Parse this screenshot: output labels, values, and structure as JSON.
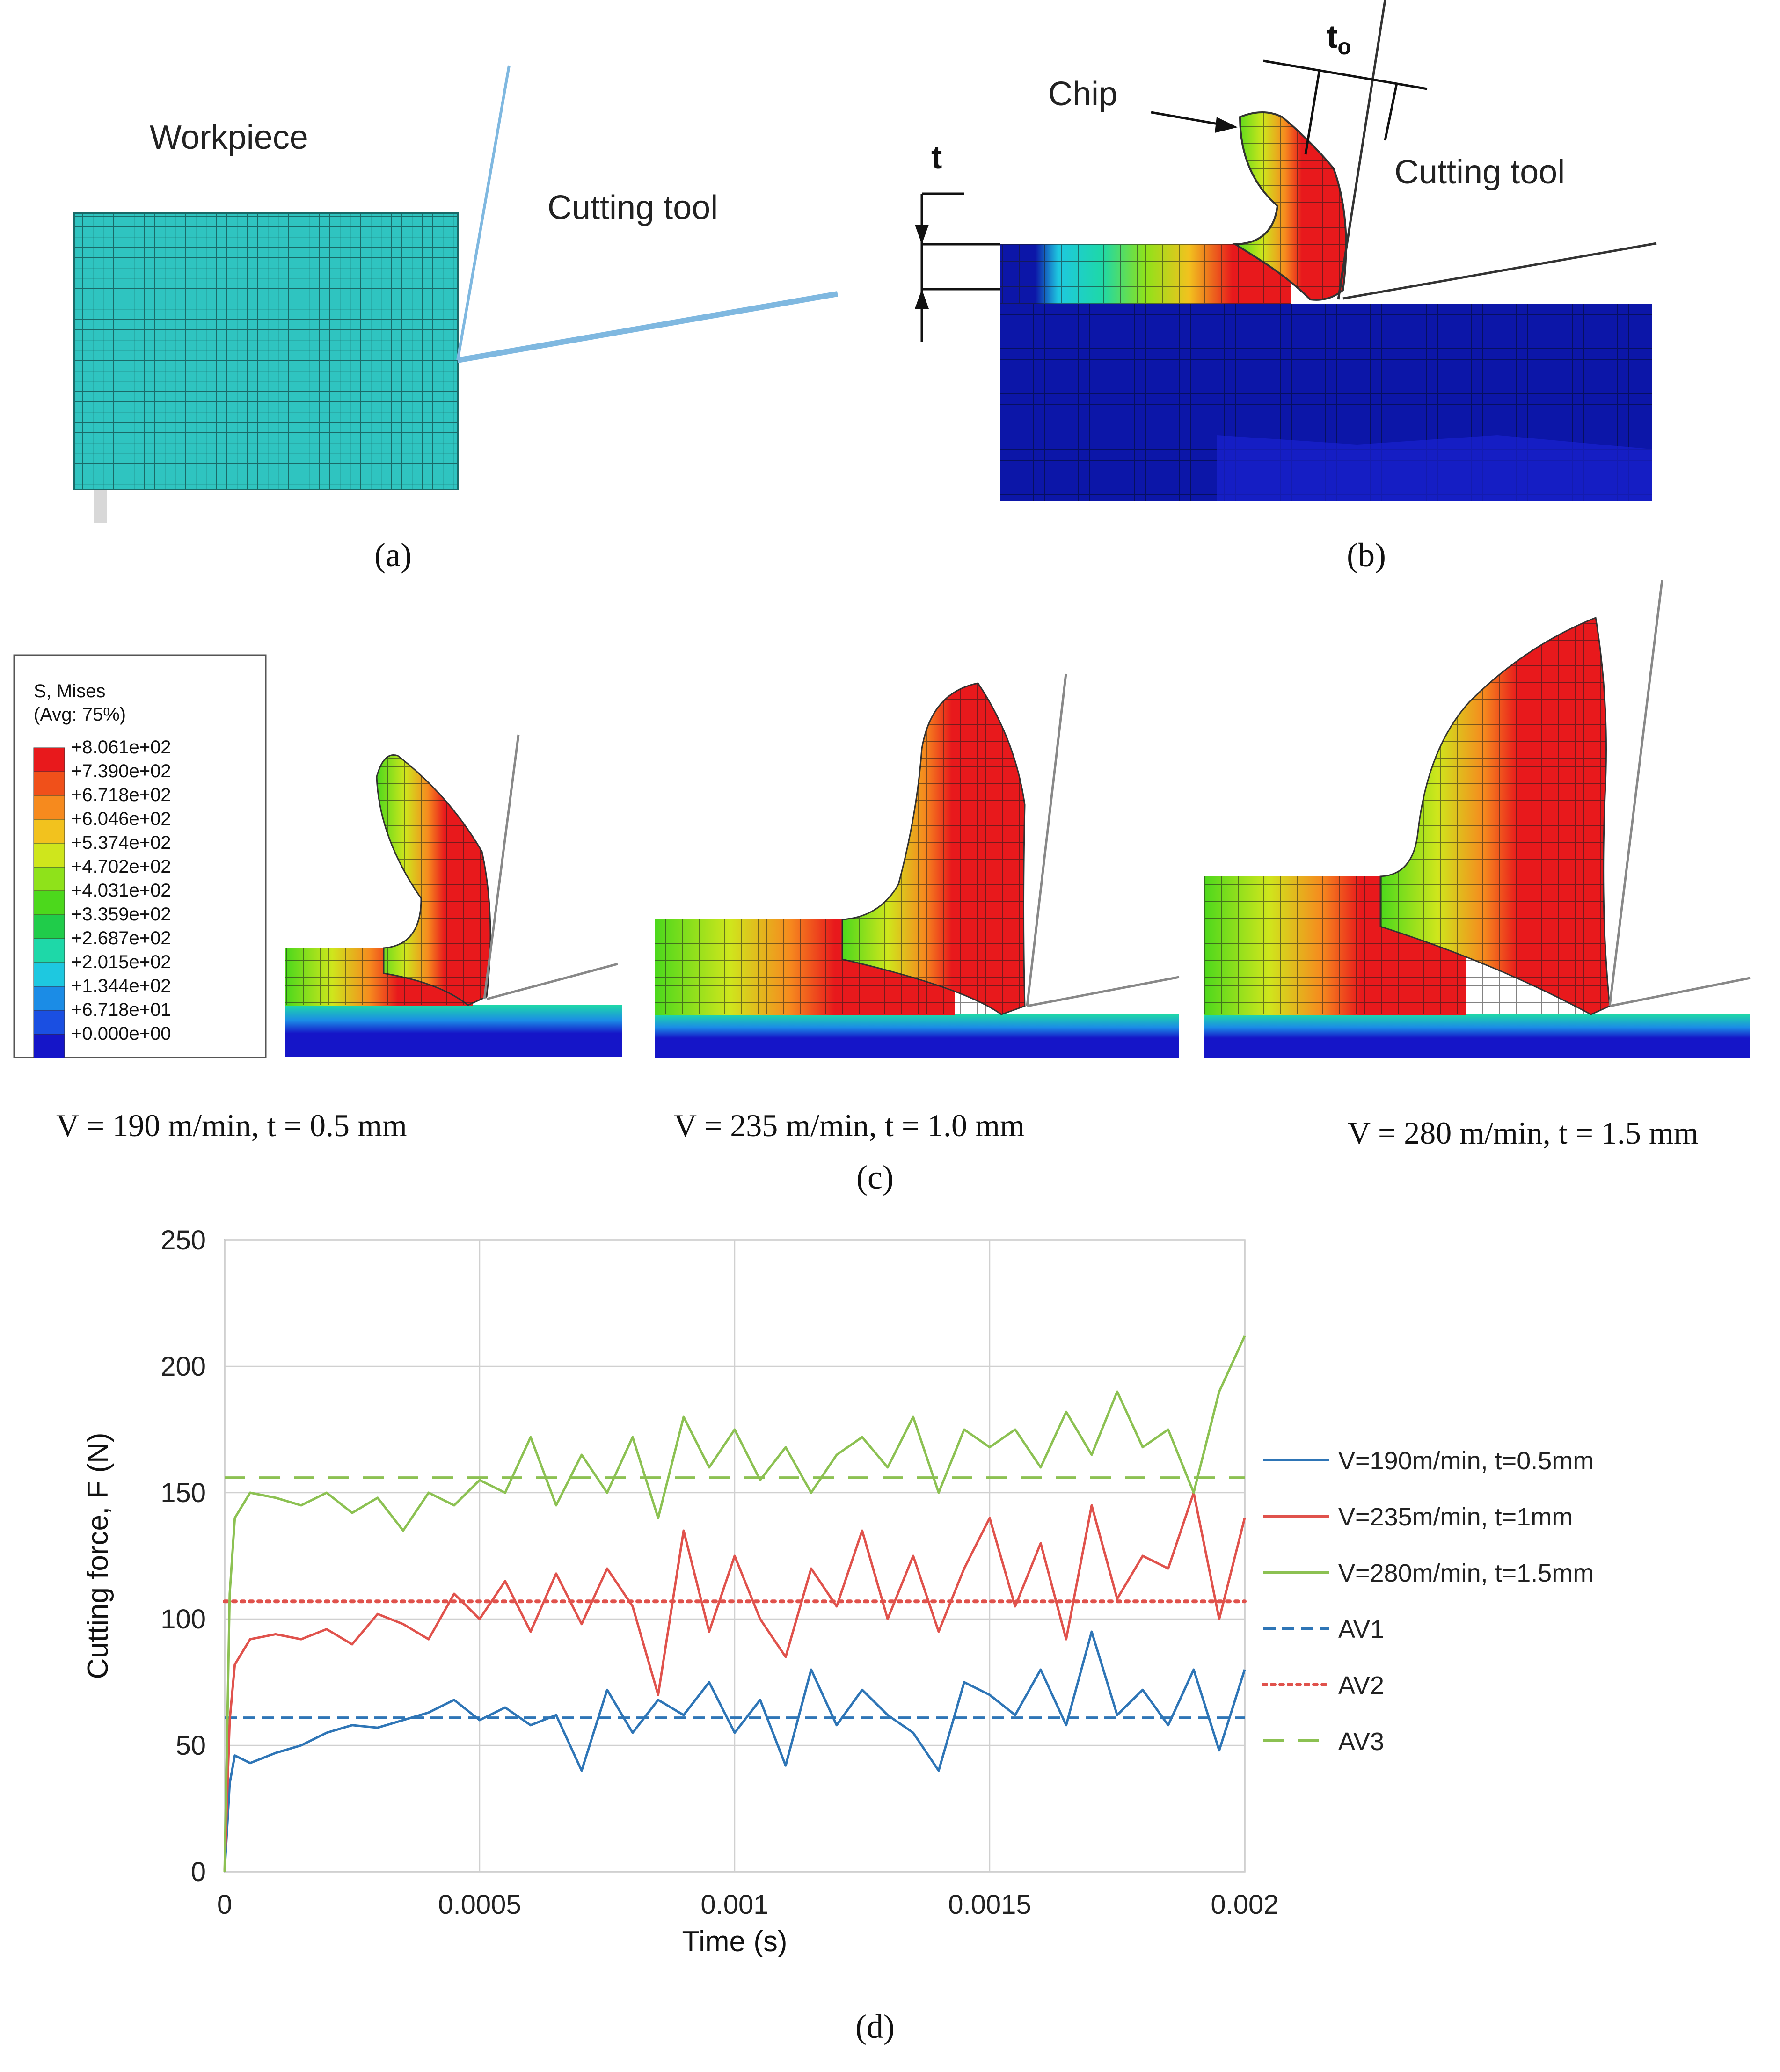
{
  "panels": {
    "a": {
      "caption": "(a)",
      "label_workpiece": "Workpiece",
      "label_tool": "Cutting tool"
    },
    "b": {
      "caption": "(b)",
      "label_chip": "Chip",
      "label_tool": "Cutting tool",
      "label_t": "t",
      "label_to_main": "t",
      "label_to_sub": "o"
    },
    "c": {
      "caption": "(c)",
      "legend_title_1": "S, Mises",
      "legend_title_2": "(Avg: 75%)",
      "legend_values": [
        "+8.061e+02",
        "+7.390e+02",
        "+6.718e+02",
        "+6.046e+02",
        "+5.374e+02",
        "+4.702e+02",
        "+4.031e+02",
        "+3.359e+02",
        "+2.687e+02",
        "+2.015e+02",
        "+1.344e+02",
        "+6.718e+01",
        "+0.000e+00"
      ],
      "legend_colors": [
        "#e8191c",
        "#f0501a",
        "#f68a1e",
        "#f2c21e",
        "#cfe61c",
        "#8fe21a",
        "#4cd81c",
        "#20cc4a",
        "#1ed8a8",
        "#1ec8e0",
        "#1b8ce6",
        "#1a4fe2",
        "#1515c8"
      ],
      "condition_labels": [
        "V = 190 m/min, t = 0.5 mm",
        "V = 235 m/min, t = 1.0 mm",
        "V = 280 m/min, t = 1.5 mm"
      ]
    },
    "d": {
      "caption": "(d)"
    }
  },
  "colors": {
    "mesh_cyan": "#2fc4c0",
    "deep_blue": "#0c16a8",
    "series_blue": "#2e75b6",
    "series_red": "#e0524c",
    "series_green": "#8cc152"
  },
  "chart_data": {
    "type": "line",
    "xlabel": "Time  (s)",
    "ylabel": "Cutting force, F (N)",
    "xlim": [
      0,
      0.002
    ],
    "ylim": [
      0,
      250
    ],
    "x_ticks": [
      0,
      0.0005,
      0.001,
      0.0015,
      0.002
    ],
    "x_tick_labels": [
      "0",
      "0.0005",
      "0.001",
      "0.0015",
      "0.002"
    ],
    "y_ticks": [
      0,
      50,
      100,
      150,
      200,
      250
    ],
    "y_tick_labels": [
      "0",
      "50",
      "100",
      "150",
      "200",
      "250"
    ],
    "grid": true,
    "legend_position": "right",
    "series": [
      {
        "name": "V=190m/min, t=0.5mm",
        "style": "solid",
        "color": "#2e75b6",
        "x": [
          0,
          1e-05,
          2e-05,
          5e-05,
          0.0001,
          0.00015,
          0.0002,
          0.00025,
          0.0003,
          0.00035,
          0.0004,
          0.00045,
          0.0005,
          0.00055,
          0.0006,
          0.00065,
          0.0007,
          0.00075,
          0.0008,
          0.00085,
          0.0009,
          0.00095,
          0.001,
          0.00105,
          0.0011,
          0.00115,
          0.0012,
          0.00125,
          0.0013,
          0.00135,
          0.0014,
          0.00145,
          0.0015,
          0.00155,
          0.0016,
          0.00165,
          0.0017,
          0.00175,
          0.0018,
          0.00185,
          0.0019,
          0.00195,
          0.002
        ],
        "values": [
          0,
          35,
          46,
          43,
          47,
          50,
          55,
          58,
          57,
          60,
          63,
          68,
          60,
          65,
          58,
          62,
          40,
          72,
          55,
          68,
          62,
          75,
          55,
          68,
          42,
          80,
          58,
          72,
          62,
          55,
          40,
          75,
          70,
          62,
          80,
          58,
          95,
          62,
          72,
          58,
          80,
          48,
          80
        ]
      },
      {
        "name": "V=235m/min, t=1mm",
        "style": "solid",
        "color": "#e0524c",
        "x": [
          0,
          1e-05,
          2e-05,
          5e-05,
          0.0001,
          0.00015,
          0.0002,
          0.00025,
          0.0003,
          0.00035,
          0.0004,
          0.00045,
          0.0005,
          0.00055,
          0.0006,
          0.00065,
          0.0007,
          0.00075,
          0.0008,
          0.00085,
          0.0009,
          0.00095,
          0.001,
          0.00105,
          0.0011,
          0.00115,
          0.0012,
          0.00125,
          0.0013,
          0.00135,
          0.0014,
          0.00145,
          0.0015,
          0.00155,
          0.0016,
          0.00165,
          0.0017,
          0.00175,
          0.0018,
          0.00185,
          0.0019,
          0.00195,
          0.002
        ],
        "values": [
          0,
          60,
          82,
          92,
          94,
          92,
          96,
          90,
          102,
          98,
          92,
          110,
          100,
          115,
          95,
          118,
          98,
          120,
          105,
          70,
          135,
          95,
          125,
          100,
          85,
          120,
          105,
          135,
          100,
          125,
          95,
          120,
          140,
          105,
          130,
          92,
          145,
          108,
          125,
          120,
          150,
          100,
          140
        ]
      },
      {
        "name": "V=280m/min, t=1.5mm",
        "style": "solid",
        "color": "#8cc152",
        "x": [
          0,
          1e-05,
          2e-05,
          5e-05,
          0.0001,
          0.00015,
          0.0002,
          0.00025,
          0.0003,
          0.00035,
          0.0004,
          0.00045,
          0.0005,
          0.00055,
          0.0006,
          0.00065,
          0.0007,
          0.00075,
          0.0008,
          0.00085,
          0.0009,
          0.00095,
          0.001,
          0.00105,
          0.0011,
          0.00115,
          0.0012,
          0.00125,
          0.0013,
          0.00135,
          0.0014,
          0.00145,
          0.0015,
          0.00155,
          0.0016,
          0.00165,
          0.0017,
          0.00175,
          0.0018,
          0.00185,
          0.0019,
          0.00195,
          0.002
        ],
        "values": [
          0,
          110,
          140,
          150,
          148,
          145,
          150,
          142,
          148,
          135,
          150,
          145,
          155,
          150,
          172,
          145,
          165,
          150,
          172,
          140,
          180,
          160,
          175,
          155,
          168,
          150,
          165,
          172,
          160,
          180,
          150,
          175,
          168,
          175,
          160,
          182,
          165,
          190,
          168,
          175,
          150,
          190,
          212
        ]
      },
      {
        "name": "AV1",
        "style": "dashed",
        "color": "#2e75b6",
        "x": [
          0,
          0.002
        ],
        "values": [
          61,
          61
        ]
      },
      {
        "name": "AV2",
        "style": "dotted",
        "color": "#e0524c",
        "x": [
          0,
          0.002
        ],
        "values": [
          107,
          107
        ]
      },
      {
        "name": "AV3",
        "style": "longdash",
        "color": "#8cc152",
        "x": [
          0,
          0.002
        ],
        "values": [
          156,
          156
        ]
      }
    ]
  }
}
